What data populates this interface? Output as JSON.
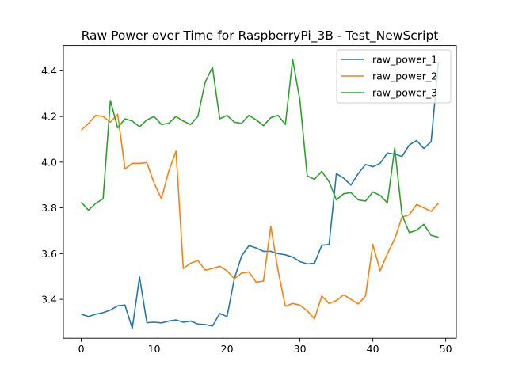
{
  "chart_data": {
    "type": "line",
    "title": "Raw Power over Time for RaspberryPi_3B - Test_NewScript",
    "xlabel": "",
    "ylabel": "",
    "xlim": [
      -2.45,
      51.45
    ],
    "ylim": [
      3.23,
      4.51
    ],
    "xticks": [
      0,
      10,
      20,
      30,
      40,
      50
    ],
    "yticks": [
      3.4,
      3.6,
      3.8,
      4.0,
      4.2,
      4.4
    ],
    "ytick_labels": [
      "3.4",
      "3.6",
      "3.8",
      "4.0",
      "4.2",
      "4.4"
    ],
    "grid": false,
    "legend_position": "top-right",
    "x": [
      0,
      1,
      2,
      3,
      4,
      5,
      6,
      7,
      8,
      9,
      10,
      11,
      12,
      13,
      14,
      15,
      16,
      17,
      18,
      19,
      20,
      21,
      22,
      23,
      24,
      25,
      26,
      27,
      28,
      29,
      30,
      31,
      32,
      33,
      34,
      35,
      36,
      37,
      38,
      39,
      40,
      41,
      42,
      43,
      44,
      45,
      46,
      47,
      48,
      49
    ],
    "series": [
      {
        "name": "raw_power_1",
        "color": "#1f77b4",
        "values": [
          3.335,
          3.325,
          3.335,
          3.342,
          3.353,
          3.372,
          3.375,
          3.273,
          3.498,
          3.298,
          3.3,
          3.297,
          3.305,
          3.31,
          3.3,
          3.305,
          3.292,
          3.29,
          3.283,
          3.338,
          3.325,
          3.49,
          3.59,
          3.635,
          3.625,
          3.61,
          3.61,
          3.6,
          3.595,
          3.585,
          3.565,
          3.555,
          3.558,
          3.637,
          3.64,
          3.95,
          3.93,
          3.9,
          3.95,
          3.99,
          3.98,
          3.995,
          4.04,
          4.035,
          4.025,
          4.075,
          4.095,
          4.06,
          4.09,
          4.44
        ]
      },
      {
        "name": "raw_power_2",
        "color": "#ff7f0e",
        "values": [
          4.14,
          4.17,
          4.205,
          4.2,
          4.175,
          4.21,
          3.97,
          3.995,
          3.995,
          3.998,
          3.908,
          3.84,
          3.96,
          4.048,
          3.535,
          3.558,
          3.57,
          3.528,
          3.535,
          3.545,
          3.525,
          3.49,
          3.515,
          3.52,
          3.475,
          3.48,
          3.72,
          3.525,
          3.37,
          3.382,
          3.375,
          3.35,
          3.315,
          3.415,
          3.382,
          3.395,
          3.42,
          3.4,
          3.38,
          3.415,
          3.64,
          3.525,
          3.6,
          3.665,
          3.76,
          3.77,
          3.815,
          3.8,
          3.785,
          3.82
        ]
      },
      {
        "name": "raw_power_3",
        "color": "#2ca02c",
        "values": [
          3.825,
          3.79,
          3.82,
          3.84,
          4.27,
          4.15,
          4.19,
          4.18,
          4.155,
          4.185,
          4.2,
          4.165,
          4.17,
          4.2,
          4.18,
          4.165,
          4.2,
          4.35,
          4.415,
          4.19,
          4.205,
          4.175,
          4.17,
          4.205,
          4.185,
          4.16,
          4.195,
          4.205,
          4.165,
          4.45,
          4.27,
          3.94,
          3.925,
          3.96,
          3.915,
          3.835,
          3.862,
          3.867,
          3.835,
          3.83,
          3.87,
          3.855,
          3.822,
          4.062,
          3.77,
          3.692,
          3.702,
          3.728,
          3.68,
          3.672
        ]
      }
    ]
  }
}
